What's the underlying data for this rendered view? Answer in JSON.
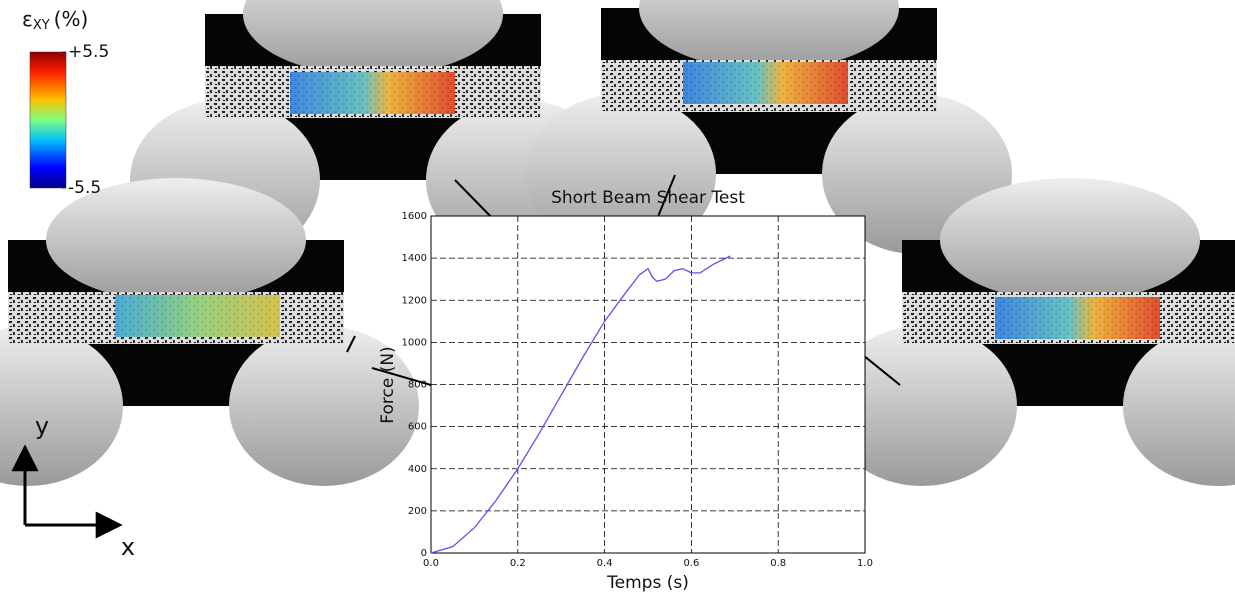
{
  "chart_data": {
    "type": "line",
    "title": "Short Beam Shear Test",
    "x_label": "Temps (s)",
    "y_label": "Force (N)",
    "x": [
      0.0,
      0.05,
      0.1,
      0.15,
      0.2,
      0.25,
      0.3,
      0.35,
      0.4,
      0.45,
      0.48,
      0.5,
      0.51,
      0.52,
      0.54,
      0.56,
      0.58,
      0.6,
      0.62,
      0.65,
      0.68,
      0.69
    ],
    "values": [
      0,
      30,
      120,
      250,
      400,
      570,
      750,
      930,
      1100,
      1240,
      1320,
      1350,
      1310,
      1290,
      1300,
      1340,
      1350,
      1330,
      1330,
      1370,
      1400,
      1410
    ],
    "color": "#5555ee",
    "xlim": [
      0.0,
      1.0
    ],
    "xticks": [
      {
        "value": 0.0,
        "label": "0.0"
      },
      0.2,
      0.4,
      0.6,
      0.8,
      {
        "value": 1.0,
        "label": "1.0"
      }
    ],
    "ylim": [
      0,
      1600
    ],
    "yticks": [
      0,
      200,
      400,
      600,
      800,
      1000,
      1200,
      1400,
      1600
    ],
    "grid": true
  },
  "colorbar": {
    "symbol": "ε",
    "subscript": "XY",
    "unit": "(%)",
    "clim": [
      -5.5,
      5.5
    ],
    "ticks": [
      {
        "value": 5.5,
        "label": "+5.5"
      },
      {
        "value": -5.5,
        "label": "-5.5"
      }
    ]
  },
  "axes_icon": {
    "y": "y",
    "x": "x"
  }
}
